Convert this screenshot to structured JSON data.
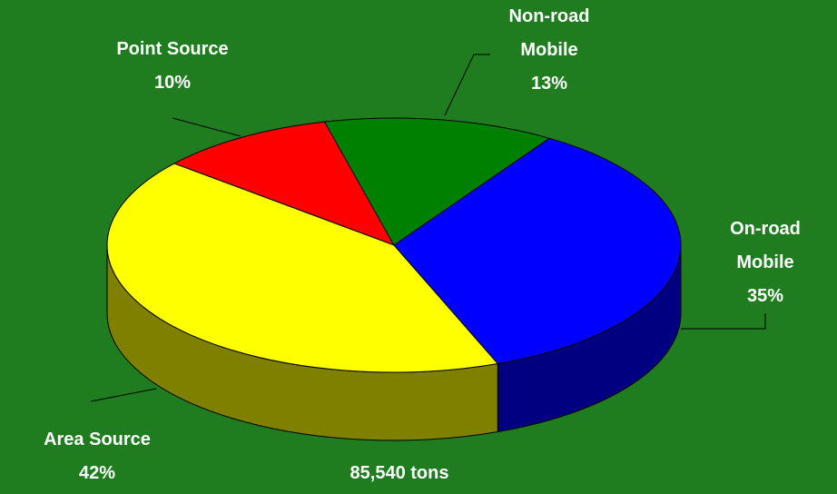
{
  "chart_data": {
    "type": "pie",
    "categories": [
      "Point Source",
      "Non-road Mobile",
      "On-road Mobile",
      "Area Source"
    ],
    "values": [
      10,
      13,
      35,
      42
    ],
    "value_labels": [
      "10%",
      "13%",
      "35%",
      "42%"
    ],
    "colors": [
      "#ff0000",
      "#008000",
      "#0000ff",
      "#ffff00"
    ],
    "annotation": "85,540 tons"
  }
}
